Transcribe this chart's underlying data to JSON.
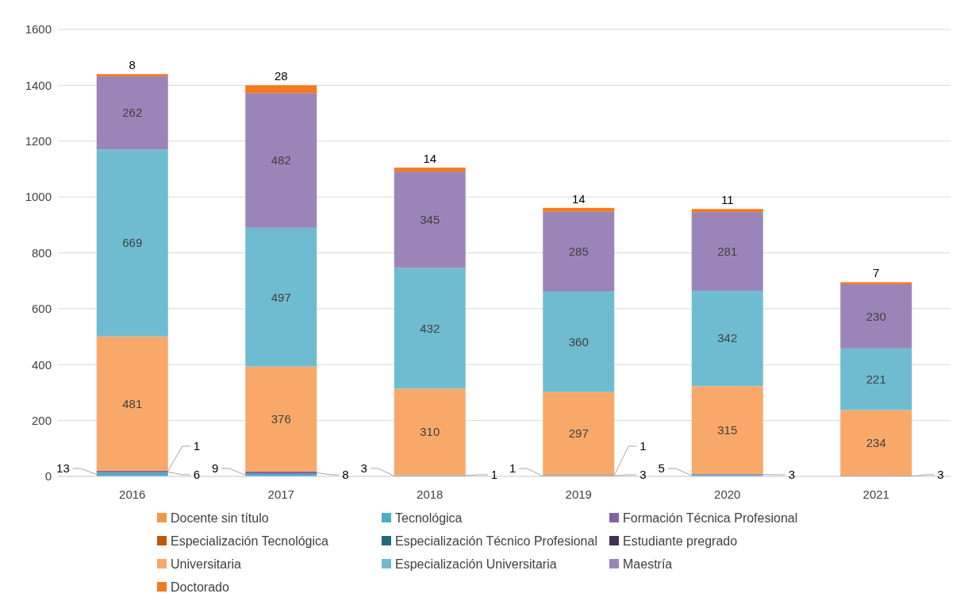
{
  "chart_data": {
    "type": "bar",
    "stacked": true,
    "categories": [
      "2016",
      "2017",
      "2018",
      "2019",
      "2020",
      "2021"
    ],
    "series": [
      {
        "name": "Docente sin título",
        "color": "#f79646",
        "values": [
          null,
          null,
          null,
          1,
          null,
          null
        ]
      },
      {
        "name": "Tecnológica",
        "color": "#4bacc6",
        "values": [
          13,
          9,
          3,
          3,
          5,
          null
        ]
      },
      {
        "name": "Formación Técnica Profesional",
        "color": "#8064a2",
        "values": [
          6,
          8,
          1,
          null,
          3,
          3
        ]
      },
      {
        "name": "Especialización Tecnológica",
        "color": "#c0580c",
        "values": [
          null,
          null,
          null,
          null,
          null,
          null
        ]
      },
      {
        "name": "Especialización Técnico Profesional",
        "color": "#1f6b7a",
        "values": [
          null,
          null,
          null,
          null,
          null,
          null
        ]
      },
      {
        "name": "Estudiante pregrado",
        "color": "#403152",
        "values": [
          1,
          null,
          null,
          1,
          null,
          null
        ]
      },
      {
        "name": "Universitaria",
        "color": "#f8a96a",
        "values": [
          481,
          376,
          310,
          297,
          315,
          234
        ]
      },
      {
        "name": "Especialización Universitaria",
        "color": "#6fbcd1",
        "values": [
          669,
          497,
          432,
          360,
          342,
          221
        ]
      },
      {
        "name": "Maestría",
        "color": "#9b85b8",
        "values": [
          262,
          482,
          345,
          285,
          281,
          230
        ]
      },
      {
        "name": "Doctorado",
        "color": "#f47a1f",
        "values": [
          8,
          28,
          14,
          14,
          11,
          7
        ]
      }
    ],
    "ylim": [
      0,
      1600
    ],
    "yticks": [
      0,
      200,
      400,
      600,
      800,
      1000,
      1200,
      1400,
      1600
    ],
    "grid": "y",
    "legend": "bottom",
    "data_labels": true
  }
}
